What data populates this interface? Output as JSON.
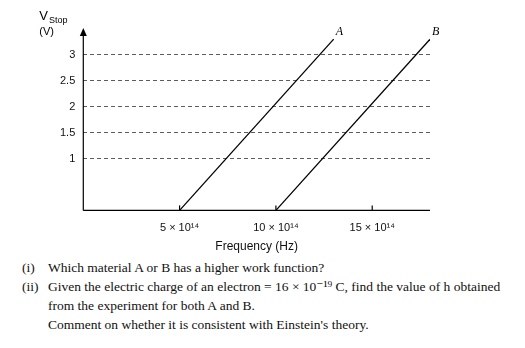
{
  "chart_data": {
    "type": "line",
    "xlabel": "Frequency (Hz)",
    "ylabel": {
      "symbol": "V",
      "subscript": "Stop",
      "unit": "(V)"
    },
    "series": [
      {
        "name": "A",
        "color": "#000000",
        "x": [
          500000000000000.0,
          1300000000000000.0
        ],
        "values": [
          0,
          3.3
        ]
      },
      {
        "name": "B",
        "color": "#000000",
        "x": [
          1000000000000000.0,
          1800000000000000.0
        ],
        "values": [
          0,
          3.3
        ]
      }
    ],
    "xlim": [
      0,
      1800000000000000.0
    ],
    "xticks": [
      {
        "value": 500000000000000.0,
        "label": "5 × 10¹⁴"
      },
      {
        "value": 1000000000000000.0,
        "label": "10 × 10¹⁴"
      },
      {
        "value": 1500000000000000.0,
        "label": "15 × 10¹⁴"
      }
    ],
    "ylim": [
      0,
      3.4
    ],
    "yticks": [
      1,
      1.5,
      2,
      2.5,
      3
    ],
    "grid": true,
    "marker": "none",
    "line_style": "solid"
  },
  "questions": [
    {
      "label": "(i)",
      "text": "Which material A or B has a higher work function?"
    },
    {
      "label": "(ii)",
      "text": "Given the electric charge of an electron = 16 × 10⁻¹⁹ C, find the value of h obtained from the experiment for both A and B.",
      "comment": "Comment on whether it is consistent with Einstein's theory."
    }
  ]
}
